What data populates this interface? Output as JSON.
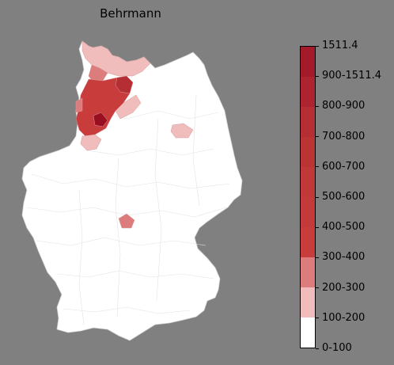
{
  "map": {
    "title": "Behrmann"
  },
  "legend": {
    "labels": [
      "0-100",
      "100-200",
      "200-300",
      "300-400",
      "400-500",
      "500-600",
      "600-700",
      "700-800",
      "800-900",
      "900-1511.4",
      "1511.4"
    ],
    "colors": [
      "#ffffff",
      "#f0bcbc",
      "#dc7c7c",
      "#c83c3c",
      "#c43a3a",
      "#c03838",
      "#bb3434",
      "#b52e34",
      "#ad2430",
      "#a31a2a",
      "#9a0e22"
    ],
    "nan_color": "#ffffff",
    "border_color": "#000000"
  },
  "regions": {
    "background": "#ffffff",
    "outline": "#cfcfcf",
    "highlight_colors": [
      "#f0bcbc",
      "#dc7c7c",
      "#c83c3c",
      "#b52e34",
      "#9a0e22"
    ]
  }
}
